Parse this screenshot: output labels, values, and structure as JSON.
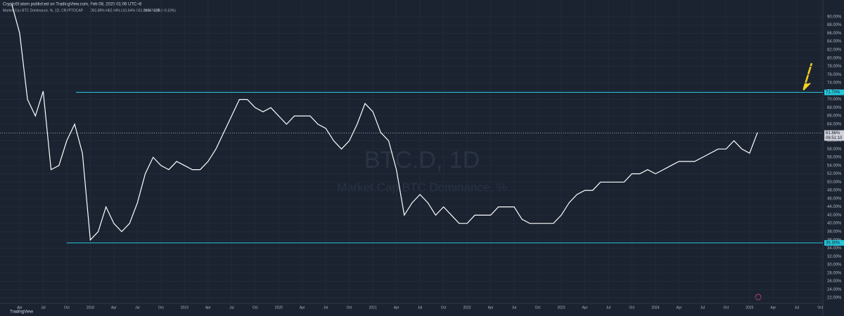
{
  "header": "CryptoShalom published on TradingView.com, Feb 08, 2025 01:06 UTC+8",
  "legend": {
    "symbol": "Market Cap BTC Dominance, %, 1D, CRYPTOCAP",
    "ohlc": "O61.89% H62.04% L61.64% C61.86% −0.06 (−0.10%)",
    "volume": "Vol47.42B"
  },
  "watermark": {
    "ticker": "BTC.D, 1D",
    "name": "Market Cap BTC Dominance, %"
  },
  "footer": "TradingView",
  "chart_data": {
    "type": "line",
    "color": "#ffffff",
    "categories": [
      null,
      "Apr",
      null,
      null,
      "Jul",
      null,
      null,
      "Oct",
      null,
      null,
      "2018",
      null,
      null,
      "Apr",
      null,
      null,
      "Jul",
      null,
      null,
      "Oct",
      null,
      null,
      "2019",
      null,
      null,
      "Apr",
      null,
      null,
      "Jul",
      null,
      null,
      "Oct",
      null,
      null,
      "2020",
      null,
      null,
      "Apr",
      null,
      null,
      "Jul",
      null,
      null,
      "Oct",
      null,
      null,
      "2021",
      null,
      null,
      "Apr",
      null,
      null,
      "Jul",
      null,
      null,
      "Oct",
      null,
      null,
      "2022",
      null,
      null,
      "Apr",
      null,
      null,
      "Jul",
      null,
      null,
      "Oct",
      null,
      null,
      "2023",
      null,
      null,
      "Apr",
      null,
      null,
      "Jul",
      null,
      null,
      "Oct",
      null,
      null,
      "2024",
      null,
      null,
      "Apr",
      null,
      null,
      "Jul",
      null,
      null,
      "Oct",
      null,
      null,
      "2025",
      null,
      null,
      "Apr",
      null,
      null,
      "Jul",
      null,
      null,
      "Oct",
      null,
      null
    ],
    "series": [
      {
        "name": "BTC.D",
        "color": "#ffffff",
        "values": [
          93,
          86,
          70,
          66,
          72,
          53,
          54,
          60,
          64,
          57,
          36,
          38,
          44,
          40,
          38,
          40,
          45,
          52,
          56,
          54,
          53,
          55,
          54,
          53,
          53,
          55,
          58,
          62,
          66,
          70,
          70,
          68,
          67,
          68,
          66,
          64,
          66,
          66,
          66,
          64,
          63,
          60,
          58,
          60,
          64,
          69,
          67,
          62,
          60,
          53,
          42,
          45,
          47,
          45,
          42,
          44,
          42,
          40,
          40,
          42,
          42,
          42,
          44,
          44,
          44,
          41,
          40,
          40,
          40,
          40,
          42,
          45,
          47,
          48,
          48,
          50,
          50,
          50,
          50,
          52,
          52,
          53,
          52,
          53,
          54,
          55,
          55,
          55,
          56,
          57,
          58,
          58,
          60,
          58,
          57,
          62,
          null,
          null,
          null,
          null,
          null,
          null,
          null,
          null,
          null,
          null
        ]
      }
    ],
    "ylim": [
      21,
      91.5
    ],
    "yticks": [
      {
        "value": 22,
        "label": "22.00%"
      },
      {
        "value": 24,
        "label": "24.00%"
      },
      {
        "value": 26,
        "label": "26.00%"
      },
      {
        "value": 28,
        "label": "28.00%"
      },
      {
        "value": 30,
        "label": "30.00%"
      },
      {
        "value": 32,
        "label": "32.00%"
      },
      {
        "value": 34,
        "label": "34.00%"
      },
      {
        "value": 36,
        "label": "36.00%"
      },
      {
        "value": 38,
        "label": "38.00%"
      },
      {
        "value": 40,
        "label": "40.00%"
      },
      {
        "value": 42,
        "label": "42.00%"
      },
      {
        "value": 44,
        "label": "44.00%"
      },
      {
        "value": 46,
        "label": "46.00%"
      },
      {
        "value": 48,
        "label": "48.00%"
      },
      {
        "value": 50,
        "label": "50.00%"
      },
      {
        "value": 52,
        "label": "52.00%"
      },
      {
        "value": 54,
        "label": "54.00%"
      },
      {
        "value": 56,
        "label": "56.00%"
      },
      {
        "value": 58,
        "label": "58.00%"
      },
      {
        "value": 60,
        "label": "60.00%"
      },
      {
        "value": 62,
        "label": "62.00%"
      },
      {
        "value": 64,
        "label": "64.00%"
      },
      {
        "value": 66,
        "label": "66.00%"
      },
      {
        "value": 68,
        "label": "68.00%"
      },
      {
        "value": 70,
        "label": "70.00%"
      },
      {
        "value": 72,
        "label": "72.00%"
      },
      {
        "value": 74,
        "label": "74.00%"
      },
      {
        "value": 76,
        "label": "76.00%"
      },
      {
        "value": 78,
        "label": "78.00%"
      },
      {
        "value": 80,
        "label": "80.00%"
      },
      {
        "value": 82,
        "label": "82.00%"
      },
      {
        "value": 84,
        "label": "84.00%"
      },
      {
        "value": 86,
        "label": "86.00%"
      },
      {
        "value": 88,
        "label": "88.00%"
      },
      {
        "value": 90,
        "label": "90.00%"
      }
    ],
    "grid": true,
    "hlines": [
      {
        "value": 71.7,
        "label": "71.70%",
        "color": "#26c6da"
      },
      {
        "value": 35.3,
        "label": "35.30%",
        "color": "#26c6da"
      }
    ],
    "last_price": {
      "value": 61.86,
      "label": "61.86%"
    },
    "countdown": "06:51:10"
  }
}
